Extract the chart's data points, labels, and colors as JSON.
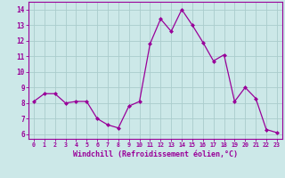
{
  "x": [
    0,
    1,
    2,
    3,
    4,
    5,
    6,
    7,
    8,
    9,
    10,
    11,
    12,
    13,
    14,
    15,
    16,
    17,
    18,
    19,
    20,
    21,
    22,
    23
  ],
  "y": [
    8.1,
    8.6,
    8.6,
    8.0,
    8.1,
    8.1,
    7.0,
    6.6,
    6.4,
    7.8,
    8.1,
    11.8,
    13.4,
    12.6,
    14.0,
    13.0,
    11.9,
    10.7,
    11.1,
    8.1,
    9.0,
    8.3,
    6.3,
    6.1
  ],
  "line_color": "#990099",
  "marker": "D",
  "marker_size": 2.0,
  "linewidth": 0.9,
  "xlabel": "Windchill (Refroidissement éolien,°C)",
  "xlabel_fontsize": 6.0,
  "xtick_labels": [
    "0",
    "1",
    "2",
    "3",
    "4",
    "5",
    "6",
    "7",
    "8",
    "9",
    "10",
    "11",
    "12",
    "13",
    "14",
    "15",
    "16",
    "17",
    "18",
    "19",
    "20",
    "21",
    "22",
    "23"
  ],
  "ytick_values": [
    6,
    7,
    8,
    9,
    10,
    11,
    12,
    13,
    14
  ],
  "ylim": [
    5.7,
    14.5
  ],
  "xlim": [
    -0.5,
    23.5
  ],
  "bg_color": "#cce8e8",
  "grid_color": "#aacccc",
  "tick_color": "#990099",
  "label_color": "#990099",
  "font_name": "monospace"
}
